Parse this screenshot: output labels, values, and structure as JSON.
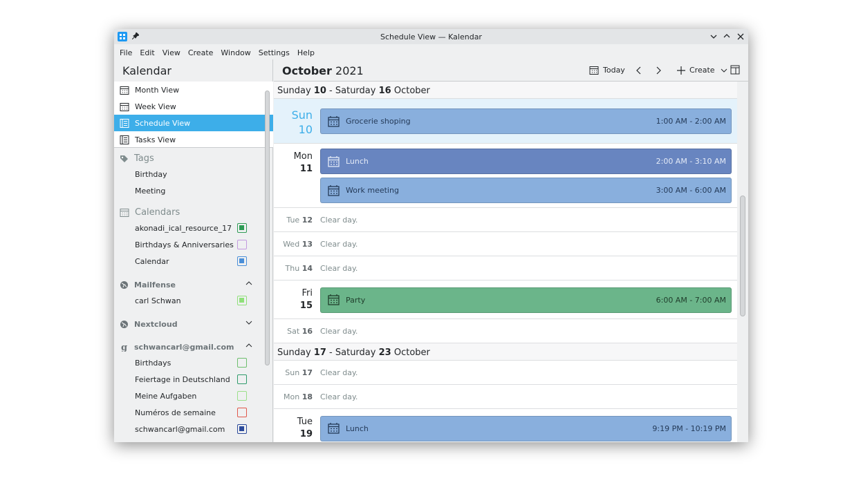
{
  "window": {
    "title": "Schedule View — Kalendar"
  },
  "menu": [
    "File",
    "Edit",
    "View",
    "Create",
    "Window",
    "Settings",
    "Help"
  ],
  "sidebar": {
    "app_name": "Kalendar",
    "views": [
      {
        "label": "Month View",
        "selected": false
      },
      {
        "label": "Week View",
        "selected": false
      },
      {
        "label": "Schedule View",
        "selected": true
      },
      {
        "label": "Tasks View",
        "selected": false
      }
    ],
    "tags": {
      "heading": "Tags",
      "items": [
        "Birthday",
        "Meeting"
      ]
    },
    "calendars": {
      "heading": "Calendars",
      "items": [
        {
          "name": "akonadi_ical_resource_17",
          "color": "#2e9b55",
          "checked": true
        },
        {
          "name": "Birthdays & Anniversaries",
          "color": "#c39ae0",
          "checked": false
        },
        {
          "name": "Calendar",
          "color": "#4a8fd8",
          "checked": true
        }
      ]
    },
    "accounts": [
      {
        "name": "Mailfense",
        "expanded": true,
        "items": [
          {
            "name": "carl Schwan",
            "color": "#8fe07a",
            "checked": true
          }
        ]
      },
      {
        "name": "Nextcloud",
        "expanded": false,
        "items": []
      },
      {
        "name": "schwancarl@gmail.com",
        "expanded": true,
        "items": [
          {
            "name": "Birthdays",
            "color": "#6dbf6d",
            "checked": false
          },
          {
            "name": "Feiertage in Deutschland",
            "color": "#2e9b6b",
            "checked": false
          },
          {
            "name": "Meine Aufgaben",
            "color": "#9be08a",
            "checked": false
          },
          {
            "name": "Numéros de semaine",
            "color": "#e0574a",
            "checked": false
          },
          {
            "name": "schwancarl@gmail.com",
            "color": "#2b4a9b",
            "checked": true
          }
        ]
      }
    ]
  },
  "header": {
    "month": "October",
    "year": "2021",
    "today": "Today",
    "create": "Create"
  },
  "weeks": [
    {
      "start_day": "Sunday",
      "start_date": "10",
      "separator": "-",
      "end_day": "Saturday",
      "end_date": "16",
      "month": "October",
      "days": [
        {
          "weekday": "Sun",
          "date": "10",
          "today": true,
          "events": [
            {
              "title": "Grocerie shoping",
              "time": "1:00 AM - 2:00 AM",
              "color": "#89afdd",
              "text_color": "#243a58"
            }
          ]
        },
        {
          "weekday": "Mon",
          "date": "11",
          "events": [
            {
              "title": "Lunch",
              "time": "2:00 AM - 3:10 AM",
              "color": "#6885c0",
              "text_color": "#e4ebf7"
            },
            {
              "title": "Work meeting",
              "time": "3:00 AM - 6:00 AM",
              "color": "#89afdd",
              "text_color": "#243a58"
            }
          ]
        },
        {
          "weekday": "Tue",
          "date": "12",
          "note": "Clear day."
        },
        {
          "weekday": "Wed",
          "date": "13",
          "note": "Clear day."
        },
        {
          "weekday": "Thu",
          "date": "14",
          "note": "Clear day."
        },
        {
          "weekday": "Fri",
          "date": "15",
          "events": [
            {
              "title": "Party",
              "time": "6:00 AM - 7:00 AM",
              "color": "#6bb58a",
              "text_color": "#1f3d2b"
            }
          ]
        },
        {
          "weekday": "Sat",
          "date": "16",
          "note": "Clear day."
        }
      ]
    },
    {
      "start_day": "Sunday",
      "start_date": "17",
      "separator": "-",
      "end_day": "Saturday",
      "end_date": "23",
      "month": "October",
      "days": [
        {
          "weekday": "Sun",
          "date": "17",
          "note": "Clear day."
        },
        {
          "weekday": "Mon",
          "date": "18",
          "note": "Clear day."
        },
        {
          "weekday": "Tue",
          "date": "19",
          "events": [
            {
              "title": "Lunch",
              "time": "9:19 PM - 10:19 PM",
              "color": "#89afdd",
              "text_color": "#243a58"
            }
          ]
        }
      ]
    }
  ]
}
